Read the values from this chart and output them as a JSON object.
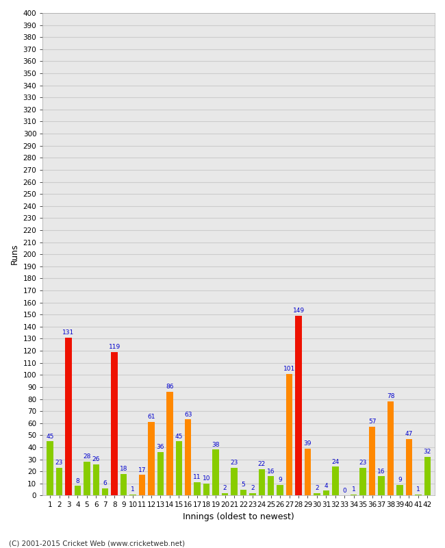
{
  "xlabel": "Innings (oldest to newest)",
  "ylabel": "Runs",
  "footer": "(C) 2001-2015 Cricket Web (www.cricketweb.net)",
  "ylim": [
    0,
    400
  ],
  "innings": [
    1,
    2,
    3,
    4,
    5,
    6,
    7,
    8,
    9,
    10,
    11,
    12,
    13,
    14,
    15,
    16,
    17,
    18,
    19,
    20,
    21,
    22,
    23,
    24,
    25,
    26,
    27,
    28,
    29,
    30,
    31,
    32,
    33,
    34,
    35,
    36,
    37,
    38,
    39,
    40,
    41,
    42
  ],
  "values": [
    45,
    23,
    131,
    8,
    28,
    26,
    6,
    119,
    18,
    1,
    17,
    61,
    36,
    86,
    45,
    63,
    11,
    10,
    38,
    2,
    23,
    5,
    2,
    22,
    16,
    9,
    101,
    149,
    39,
    2,
    4,
    24,
    0,
    1,
    23,
    57,
    16,
    78,
    9,
    47,
    1,
    32
  ],
  "colors": [
    "#88cc00",
    "#88cc00",
    "#ee1100",
    "#88cc00",
    "#88cc00",
    "#88cc00",
    "#88cc00",
    "#ee1100",
    "#88cc00",
    "#88cc00",
    "#ff8800",
    "#ff8800",
    "#88cc00",
    "#ff8800",
    "#88cc00",
    "#ff8800",
    "#88cc00",
    "#88cc00",
    "#88cc00",
    "#88cc00",
    "#88cc00",
    "#88cc00",
    "#88cc00",
    "#88cc00",
    "#88cc00",
    "#88cc00",
    "#ff8800",
    "#ee1100",
    "#ff8800",
    "#88cc00",
    "#88cc00",
    "#88cc00",
    "#88cc00",
    "#88cc00",
    "#88cc00",
    "#ff8800",
    "#88cc00",
    "#ff8800",
    "#88cc00",
    "#ff8800",
    "#88cc00",
    "#88cc00"
  ],
  "bg_color": "#ffffff",
  "plot_bg": "#e8e8e8",
  "grid_color": "#cccccc",
  "label_color": "#0000cc",
  "bar_width": 0.7,
  "axis_fontsize": 9,
  "tick_fontsize": 7.5,
  "label_fontsize": 6.5
}
